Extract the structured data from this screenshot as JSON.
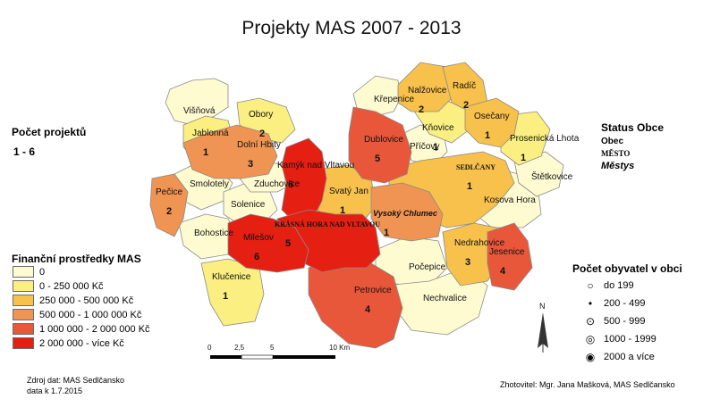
{
  "title": "Projekty MAS 2007 - 2013",
  "projects_legend": {
    "heading": "Počet projektů",
    "range": "1 - 6"
  },
  "finance_legend": {
    "heading": "Finanční prostředky MAS",
    "classes": [
      {
        "label": "0",
        "color": "#fefbd0"
      },
      {
        "label": "0 - 250 000 Kč",
        "color": "#fbef81"
      },
      {
        "label": "250 000 - 500 000 Kč",
        "color": "#f7c14b"
      },
      {
        "label": "500 000 - 1 000 000 Kč",
        "color": "#ef9452"
      },
      {
        "label": "1 000 000 - 2 000 000 Kč",
        "color": "#e8573a"
      },
      {
        "label": "2 000 000 - více Kč",
        "color": "#e51f12"
      }
    ]
  },
  "status_legend": {
    "heading": "Status Obce",
    "obec": "Obec",
    "mesto": "MĚSTO",
    "mestys": "Městys"
  },
  "population_legend": {
    "heading": "Počet obyvatel v obci",
    "classes": [
      {
        "label": "do 199",
        "symbol": "open-small-icon"
      },
      {
        "label": "200 - 499",
        "symbol": "dot-icon"
      },
      {
        "label": "500 - 999",
        "symbol": "dot-in-circle-icon"
      },
      {
        "label": "1000 - 1999",
        "symbol": "double-circle-icon"
      },
      {
        "label": "2000 a více",
        "symbol": "bold-circle-dot-icon"
      }
    ]
  },
  "scale": {
    "ticks": [
      "0",
      "2,5",
      "5",
      "10 Km"
    ]
  },
  "north_arrow": {
    "label": "N"
  },
  "source": {
    "line1": "Zdroj dat: MAS Sedlčansko",
    "line2": "data k 1.7.2015"
  },
  "author": "Zhotovitel: Mgr. Jana Mašková, MAS Sedlčansko",
  "municipalities": [
    {
      "name": "Višňová",
      "projects": "",
      "class": 0
    },
    {
      "name": "Obory",
      "projects": "2",
      "class": 1
    },
    {
      "name": "Jablonná",
      "projects": "1",
      "class": 1
    },
    {
      "name": "Dolní Hbity",
      "projects": "3",
      "class": 3
    },
    {
      "name": "Křepenice",
      "projects": "",
      "class": 0
    },
    {
      "name": "Nalžovice",
      "projects": "2",
      "class": 2
    },
    {
      "name": "Radíč",
      "projects": "2",
      "class": 2
    },
    {
      "name": "Osečany",
      "projects": "1",
      "class": 2
    },
    {
      "name": "Klučenice",
      "projects": "1",
      "class": 1
    },
    {
      "name": "Dublovice",
      "projects": "5",
      "class": 4
    },
    {
      "name": "Kňovice",
      "projects": "1",
      "class": 1
    },
    {
      "name": "Prosenická Lhota",
      "projects": "1",
      "class": 1
    },
    {
      "name": "Smolotely",
      "projects": "",
      "class": 0
    },
    {
      "name": "Kamýk nad Vltavou",
      "projects": "6",
      "class": 5
    },
    {
      "name": "Příčovy",
      "projects": "",
      "class": 0
    },
    {
      "name": "Zduchovice",
      "projects": "",
      "class": 0
    },
    {
      "name": "SEDLČANY",
      "projects": "1",
      "class": 2
    },
    {
      "name": "Štětkovice",
      "projects": "",
      "class": 0
    },
    {
      "name": "Pečice",
      "projects": "2",
      "class": 3
    },
    {
      "name": "Solenice",
      "projects": "",
      "class": 0
    },
    {
      "name": "Svatý Jan",
      "projects": "1",
      "class": 2
    },
    {
      "name": "Kosova Hora",
      "projects": "",
      "class": 0
    },
    {
      "name": "Vysoký Chlumec",
      "projects": "1",
      "class": 3
    },
    {
      "name": "KRÁSNÁ HORA NAD VLTAVOU",
      "projects": "5",
      "class": 5
    },
    {
      "name": "Bohostice",
      "projects": "",
      "class": 0
    },
    {
      "name": "Milešov",
      "projects": "6",
      "class": 5
    },
    {
      "name": "Nedrahovice",
      "projects": "3",
      "class": 2
    },
    {
      "name": "Jesenice",
      "projects": "4",
      "class": 4
    },
    {
      "name": "Počepice",
      "projects": "",
      "class": 0
    },
    {
      "name": "Petrovice",
      "projects": "4",
      "class": 4
    },
    {
      "name": "Nechvalice",
      "projects": "",
      "class": 0
    }
  ]
}
